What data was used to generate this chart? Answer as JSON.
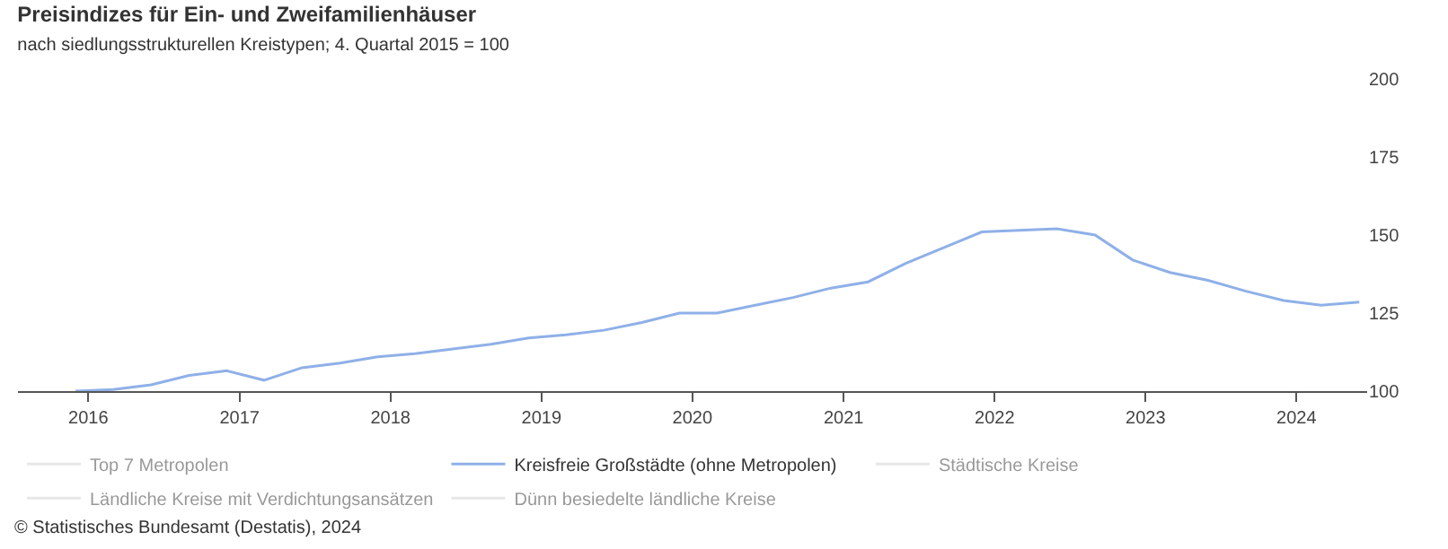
{
  "chart_data": {
    "type": "line",
    "title": "Preisindizes für Ein- und Zweifamilienhäuser",
    "subtitle": "nach siedlungsstrukturellen Kreistypen; 4. Quartal 2015 = 100",
    "x": [
      "2015-12",
      "2016-03",
      "2016-06",
      "2016-09",
      "2016-12",
      "2017-03",
      "2017-06",
      "2017-09",
      "2017-12",
      "2018-03",
      "2018-06",
      "2018-09",
      "2018-12",
      "2019-03",
      "2019-06",
      "2019-09",
      "2019-12",
      "2020-03",
      "2020-06",
      "2020-09",
      "2020-12",
      "2021-03",
      "2021-06",
      "2021-09",
      "2021-12",
      "2022-03",
      "2022-06",
      "2022-09",
      "2022-12",
      "2023-03",
      "2023-06",
      "2023-09",
      "2023-12",
      "2024-03",
      "2024-06"
    ],
    "series": [
      {
        "name": "Top 7 Metropolen",
        "color": "#d0d0d0",
        "values": [
          null,
          null,
          null,
          null,
          null,
          null,
          null,
          null,
          null,
          null,
          null,
          null,
          null,
          null,
          null,
          null,
          null,
          null,
          null,
          null,
          null,
          null,
          null,
          null,
          null,
          null,
          null,
          null,
          null,
          null,
          null,
          null,
          null,
          null,
          null
        ]
      },
      {
        "name": "Kreisfreie Großstädte (ohne Metropolen)",
        "color": "#8fb0e8",
        "values": [
          100,
          100.5,
          102,
          105,
          106.5,
          103.5,
          107.5,
          109,
          111,
          112,
          113.5,
          115,
          117,
          118,
          119.5,
          122,
          125,
          125,
          127.5,
          130,
          133,
          135,
          141,
          146,
          151,
          151.5,
          152,
          150,
          142,
          138,
          135.5,
          132,
          129,
          127.5,
          128.5
        ]
      },
      {
        "name": "Städtische Kreise",
        "color": "#d0d0d0",
        "values": [
          null,
          null,
          null,
          null,
          null,
          null,
          null,
          null,
          null,
          null,
          null,
          null,
          null,
          null,
          null,
          null,
          null,
          null,
          null,
          null,
          null,
          null,
          null,
          null,
          null,
          null,
          null,
          null,
          null,
          null,
          null,
          null,
          null,
          null,
          null
        ]
      },
      {
        "name": "Ländliche Kreise mit Verdichtungsansätzen",
        "color": "#d0d0d0",
        "values": [
          null,
          null,
          null,
          null,
          null,
          null,
          null,
          null,
          null,
          null,
          null,
          null,
          null,
          null,
          null,
          null,
          null,
          null,
          null,
          null,
          null,
          null,
          null,
          null,
          null,
          null,
          null,
          null,
          null,
          null,
          null,
          null,
          null,
          null,
          null
        ]
      },
      {
        "name": "Dünn besiedelte ländliche Kreise",
        "color": "#d0d0d0",
        "values": [
          null,
          null,
          null,
          null,
          null,
          null,
          null,
          null,
          null,
          null,
          null,
          null,
          null,
          null,
          null,
          null,
          null,
          null,
          null,
          null,
          null,
          null,
          null,
          null,
          null,
          null,
          null,
          null,
          null,
          null,
          null,
          null,
          null,
          null,
          null
        ]
      }
    ],
    "xlim": [
      "2015-07-15",
      "2024-06-20"
    ],
    "xticks": [
      {
        "value": "2016-01-01",
        "label": "2016"
      },
      {
        "value": "2017-01-01",
        "label": "2017"
      },
      {
        "value": "2018-01-01",
        "label": "2018"
      },
      {
        "value": "2019-01-01",
        "label": "2019"
      },
      {
        "value": "2020-01-01",
        "label": "2020"
      },
      {
        "value": "2021-01-01",
        "label": "2021"
      },
      {
        "value": "2022-01-01",
        "label": "2022"
      },
      {
        "value": "2023-01-01",
        "label": "2023"
      },
      {
        "value": "2024-01-01",
        "label": "2024"
      }
    ],
    "ylim": [
      100,
      200
    ],
    "yticks": [
      100,
      125,
      150,
      175,
      200
    ],
    "grid": false,
    "legend": "bottom",
    "marker": "none",
    "line_style": "solid",
    "annotations": [
      "© Statistisches Bundesamt (Destatis), 2024"
    ]
  }
}
